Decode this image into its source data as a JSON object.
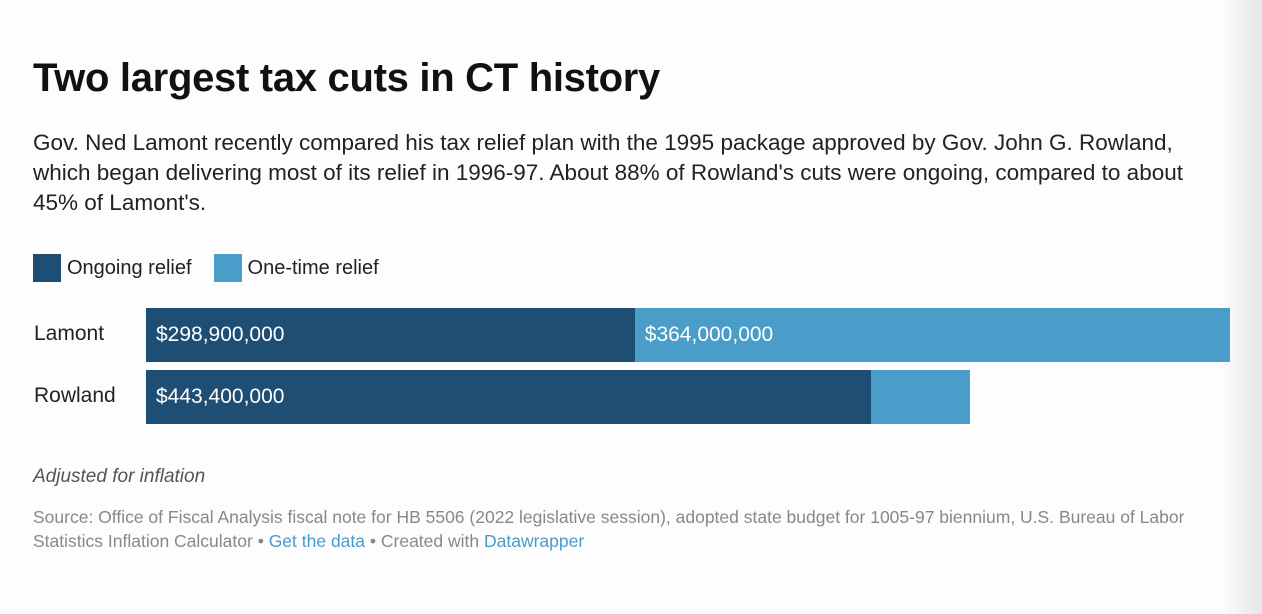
{
  "title": "Two largest tax cuts in CT history",
  "description": "Gov. Ned Lamont recently compared his tax relief plan with the 1995 package approved by Gov. John G. Rowland, which began delivering most of its relief in 1996-97. About 88% of Rowland's cuts were ongoing, compared to about 45% of Lamont's.",
  "legend": [
    {
      "label": "Ongoing relief",
      "color": "#1f4e75"
    },
    {
      "label": "One-time relief",
      "color": "#4a9dc8"
    }
  ],
  "chart_data": {
    "type": "bar",
    "orientation": "horizontal",
    "stacked": true,
    "categories": [
      "Lamont",
      "Rowland"
    ],
    "series": [
      {
        "name": "Ongoing relief",
        "color": "#1f4e75",
        "values": [
          298900000,
          443400000
        ],
        "labels": [
          "$298,900,000",
          "$443,400,000"
        ]
      },
      {
        "name": "One-time relief",
        "color": "#4a9dc8",
        "values": [
          364000000,
          60500000
        ],
        "labels": [
          "$364,000,000",
          ""
        ]
      }
    ],
    "xlim": [
      0,
      662900000
    ],
    "grid": false,
    "legend_position": "top-left"
  },
  "footer": {
    "note": "Adjusted for inflation",
    "source": "Source: Office of Fiscal Analysis fiscal note for HB 5506 (2022 legislative session), adopted state budget for 1005-97 biennium, U.S. Bureau of Labor Statistics Inflation Calculator",
    "sep": " • ",
    "get_data": "Get the data",
    "created": "Created with ",
    "datawrapper": "Datawrapper"
  }
}
